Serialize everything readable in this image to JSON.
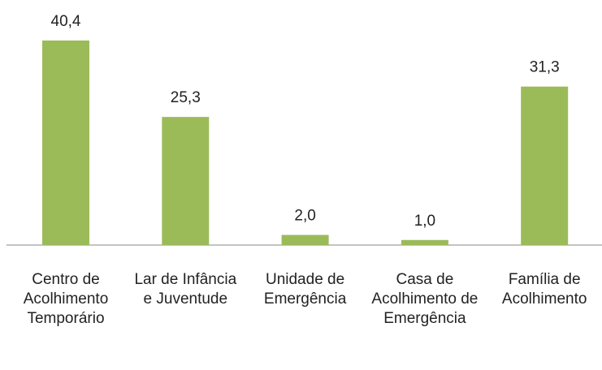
{
  "chart_data": {
    "type": "bar",
    "categories": [
      "Centro de Acolhimento Temporário",
      "Lar de Infância e Juventude",
      "Unidade de Emergência",
      "Casa de Acolhimento de Emergência",
      "Família de Acolhimento"
    ],
    "values": [
      40.4,
      25.3,
      2.0,
      1.0,
      31.3
    ],
    "value_labels": [
      "40,4",
      "25,3",
      "2,0",
      "1,0",
      "31,3"
    ],
    "color": "#9bbb59"
  }
}
